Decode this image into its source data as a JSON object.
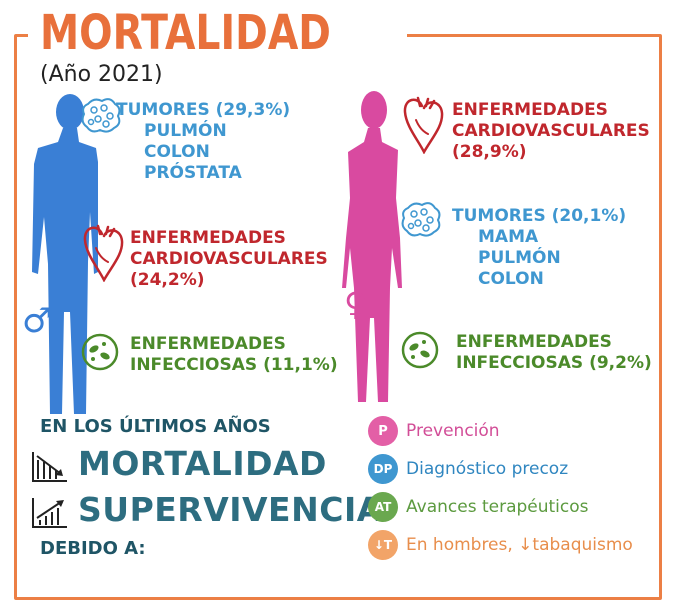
{
  "title": "MORTALIDAD",
  "year": "(Año 2021)",
  "male": {
    "symbol": "♂",
    "tumors": {
      "title": "TUMORES (29,3%)",
      "items": [
        "PULMÓN",
        "COLON",
        "PRÓSTATA"
      ]
    },
    "cardio": {
      "line1": "ENFERMEDADES",
      "line2": "CARDIOVASCULARES",
      "line3": "(24,2%)"
    },
    "infect": {
      "line1": "ENFERMEDADES",
      "line2": "INFECCIOSAS (11,1%)"
    }
  },
  "female": {
    "symbol": "♀",
    "cardio": {
      "line1": "ENFERMEDADES",
      "line2": "CARDIOVASCULARES",
      "line3": "(28,9%)"
    },
    "tumors": {
      "title": "TUMORES (20,1%)",
      "items": [
        "MAMA",
        "PULMÓN",
        "COLON"
      ]
    },
    "infect": {
      "line1": "ENFERMEDADES",
      "line2": "INFECCIOSAS (9,2%)"
    }
  },
  "trend": {
    "heading": "EN LOS ÚLTIMOS AÑOS",
    "mortality": "MORTALIDAD",
    "survival": "SUPERVIVENCIA",
    "due_to": "DEBIDO A:"
  },
  "legend": [
    {
      "badge": "P",
      "text": "Prevención",
      "color": "#e35fa6",
      "text_color": "#d24d97"
    },
    {
      "badge": "DP",
      "text": "Diagnóstico precoz",
      "color": "#3f97d0",
      "text_color": "#2f86c0"
    },
    {
      "badge": "AT",
      "text": "Avances terapéuticos",
      "color": "#6aa84f",
      "text_color": "#5c9a3f"
    },
    {
      "badge": "↓T",
      "text": "En hombres, ↓tabaquismo",
      "color": "#f2a468",
      "text_color": "#e88e4c"
    }
  ],
  "colors": {
    "orange": "#ec7f45",
    "male": "#3a7fd5",
    "female": "#d94aa0",
    "blue": "#3f97d0",
    "red": "#c0272d",
    "green": "#4b8a2a"
  }
}
